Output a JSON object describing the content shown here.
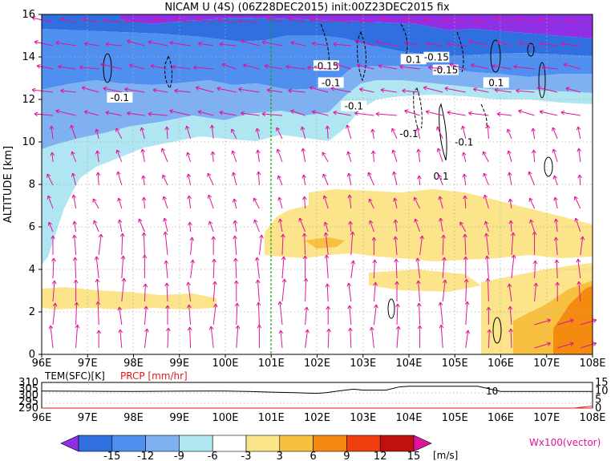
{
  "chart_data": {
    "type": "heatmap",
    "title": "NICAM U (4S) (06Z28DEC2015) init:00Z23DEC2015 fix",
    "ylabel": "ALTITUDE [km]",
    "x_ticks": [
      "96E",
      "97E",
      "98E",
      "99E",
      "100E",
      "101E",
      "102E",
      "103E",
      "104E",
      "105E",
      "106E",
      "107E",
      "108E"
    ],
    "y_ticks": [
      "0",
      "2",
      "4",
      "6",
      "8",
      "10",
      "12",
      "14",
      "16"
    ],
    "xlim": [
      96,
      108
    ],
    "ylim": [
      0,
      16
    ],
    "highlight_longitude": 101,
    "contour_labels": [
      {
        "text": "-0.1",
        "lon": 97.7,
        "alt": 12.0
      },
      {
        "text": "-0.15",
        "lon": 102.2,
        "alt": 13.5
      },
      {
        "text": "-0.1",
        "lon": 102.3,
        "alt": 12.7
      },
      {
        "text": "-0.1",
        "lon": 102.8,
        "alt": 11.6
      },
      {
        "text": "-0.1",
        "lon": 104.0,
        "alt": 10.3
      },
      {
        "text": "0.1",
        "lon": 104.1,
        "alt": 13.8
      },
      {
        "text": "-0.15",
        "lon": 104.6,
        "alt": 13.9
      },
      {
        "text": "-0.15",
        "lon": 104.8,
        "alt": 13.3
      },
      {
        "text": "0.1",
        "lon": 105.9,
        "alt": 12.7
      },
      {
        "text": "-0.1",
        "lon": 105.2,
        "alt": 9.9
      },
      {
        "text": "0.1",
        "lon": 104.7,
        "alt": 8.3
      }
    ],
    "colorbar": {
      "ticks": [
        "-15",
        "-12",
        "-9",
        "-6",
        "-3",
        "3",
        "6",
        "9",
        "12",
        "15"
      ],
      "unit": "[m/s]",
      "colors": [
        "#8f2fe6",
        "#2f6fe0",
        "#4f8ff0",
        "#7fb0f2",
        "#b0e6f2",
        "#ffffff",
        "#fbe48a",
        "#f8c040",
        "#f58a10",
        "#f04010",
        "#c01010",
        "#e0149a"
      ]
    },
    "vector_label": "Wx100(vector)",
    "bottom_panel": {
      "left_label": "TEM(SFC)[K]",
      "right_label": "PRCP [mm/hr]",
      "left_ticks": [
        "310",
        "305",
        "300",
        "295",
        "290"
      ],
      "right_ticks": [
        "15",
        "10",
        "5",
        "0"
      ],
      "annotation": "10",
      "temperature": {
        "lon": [
          96,
          97,
          98,
          99,
          100,
          100.5,
          101,
          101.5,
          102,
          102.2,
          102.5,
          102.8,
          103,
          103.5,
          103.8,
          104,
          104.5,
          105,
          105.5,
          106,
          106.5,
          107,
          108
        ],
        "values": [
          303.3,
          303.1,
          303.0,
          303.2,
          303.3,
          303.0,
          302.4,
          302.0,
          301.5,
          302.0,
          303.5,
          304.8,
          304.0,
          304.0,
          306.6,
          307.0,
          307.0,
          307.0,
          307.0,
          303.0,
          303.0,
          303.0,
          303.0
        ]
      },
      "precip": {
        "lon": [
          96,
          107.6,
          108
        ],
        "values": [
          0,
          0,
          1.2
        ]
      }
    }
  }
}
